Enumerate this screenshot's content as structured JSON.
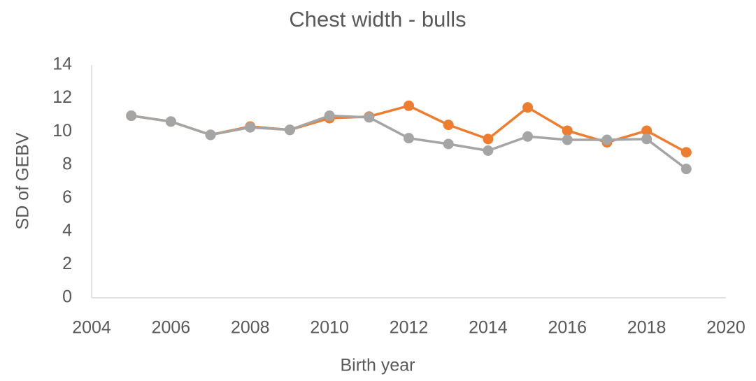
{
  "chart_data": {
    "type": "line",
    "title": "Chest width - bulls",
    "x_label": "Birth year",
    "y_label": "SD of GEBV",
    "x": [
      2005,
      2006,
      2007,
      2008,
      2009,
      2010,
      2011,
      2012,
      2013,
      2014,
      2015,
      2016,
      2017,
      2018,
      2019
    ],
    "series": [
      {
        "color": "#ed7d31",
        "values": [
          10.95,
          10.6,
          9.8,
          10.3,
          10.1,
          10.8,
          10.9,
          11.55,
          10.4,
          9.55,
          11.45,
          10.05,
          9.35,
          10.05,
          8.75
        ]
      },
      {
        "color": "#a5a5a5",
        "values": [
          10.95,
          10.6,
          9.8,
          10.25,
          10.1,
          10.95,
          10.85,
          9.6,
          9.25,
          8.85,
          9.7,
          9.5,
          9.5,
          9.55,
          7.75
        ]
      }
    ],
    "xlim": [
      2004,
      2020
    ],
    "xticks": [
      2004,
      2006,
      2008,
      2010,
      2012,
      2014,
      2016,
      2018,
      2020
    ],
    "ylim": [
      0,
      14
    ],
    "yticks": [
      0,
      2,
      4,
      6,
      8,
      10,
      12,
      14
    ],
    "grid": false
  }
}
